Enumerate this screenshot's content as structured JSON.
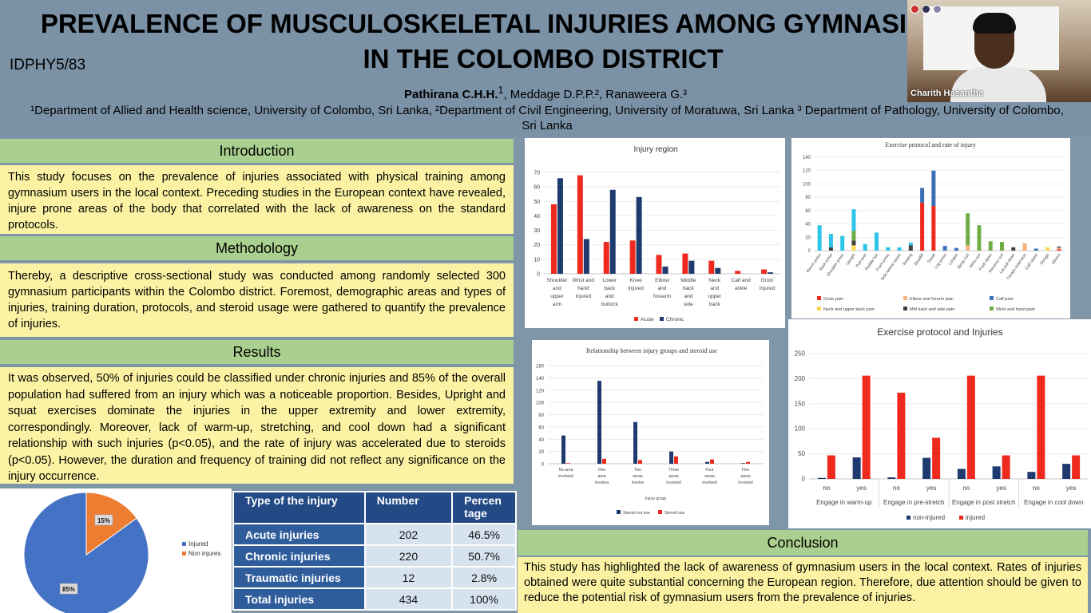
{
  "header": {
    "title": "PREVALENCE OF MUSCULOSKELETAL INJURIES AMONG GYMNASIUM USERS\nIN THE COLOMBO DISTRICT",
    "code": "IDPHY5/83",
    "lead_author": "Pathirana C.H.H.",
    "lead_author_sup": "1",
    "other_authors": ", Meddage D.P.P.², Ranaweera G.³",
    "affiliations": "¹Department of Allied and Health science, University of Colombo, Sri Lanka, ²Department of Civil Engineering, University of Moratuwa, Sri Lanka ³ Department of Pathology, University of Colombo, Sri Lanka"
  },
  "video": {
    "participant_name": "Charith Hasantha"
  },
  "introduction": {
    "heading": "Introduction",
    "text": "This study focuses on the prevalence of injuries associated with physical training among gymnasium users in the local context. Preceding studies in the European context have revealed, injure prone areas of the body that correlated with the lack of awareness on the standard protocols."
  },
  "methodology": {
    "heading": "Methodology",
    "text": "Thereby, a descriptive cross-sectional study was conducted among randomly selected 300 gymnasium participants within the Colombo district. Foremost, demographic areas and types of injuries, training duration, protocols, and steroid usage were gathered to quantify the prevalence of injuries."
  },
  "results": {
    "heading": "Results",
    "text": "It was observed, 50% of injuries could be classified under chronic injuries and 85% of the overall population had suffered from an injury which was a noticeable proportion.  Besides, Upright and squat exercises dominate the injuries in the upper extremity and lower extremity, correspondingly. Moreover, lack of warm-up, stretching, and cool down had a significant relationship with such injuries (p<0.05), and the rate of injury was accelerated due to steroids (p<0.05). However, the duration and frequency of training did not reflect any significance on the injury occurrence."
  },
  "conclusion": {
    "heading": "Conclusion",
    "text": "This study has highlighted the lack of awareness of gymnasium users in the local context. Rates of injuries obtained were quite substantial concerning the European region. Therefore, due attention should be given to reduce the potential risk of gymnasium users from the prevalence of injuries."
  },
  "injury_table": {
    "headers": [
      "Type of the injury",
      "Number",
      "Percentage"
    ],
    "rows": [
      [
        "Acute injuries",
        "202",
        "46.5%"
      ],
      [
        "Chronic injuries",
        "220",
        "50.7%"
      ],
      [
        "Traumatic injuries",
        "12",
        "2.8%"
      ],
      [
        "Total injuries",
        "434",
        "100%"
      ]
    ]
  },
  "colors": {
    "red": "#ee2a1e",
    "navy": "#1f3a6e",
    "pie_blue": "#4472c4",
    "pie_orange": "#ed7d31",
    "cyan": "#2ec4e8",
    "blue2": "#3b6fb6",
    "green": "#70ad47",
    "yellow": "#ffd54a",
    "orange": "#f4b183",
    "gray": "#7f7f7f"
  },
  "chart_data": [
    {
      "id": "pie",
      "type": "pie",
      "title": "",
      "categories": [
        "Injured",
        "Non injures"
      ],
      "values": [
        85,
        15
      ],
      "labels": [
        "85%",
        "15%"
      ],
      "colors": [
        "#4472c4",
        "#ed7d31"
      ],
      "legend": "right"
    },
    {
      "id": "region",
      "type": "bar",
      "title": "Injury region",
      "categories": [
        "Shoulder and upper arm",
        "Wrist and hand injured",
        "Lower back and buttock",
        "Knee injured",
        "Elbow and forearm",
        "Middle back and side",
        "Neck and upper back",
        "Calf and ankle",
        "Groin injured"
      ],
      "tick_labels": [
        [
          "Shoulder",
          "and",
          "upper",
          "arm"
        ],
        [
          "Wrist and",
          "hand",
          "injured"
        ],
        [
          "Lower",
          "back",
          "and",
          "buttock"
        ],
        [
          "Knee",
          "injured"
        ],
        [
          "Elbow",
          "and",
          "forearm"
        ],
        [
          "Middle",
          "back",
          "and",
          "side"
        ],
        [
          "Neck",
          "and",
          "upper",
          "back"
        ],
        [
          "Calf and",
          "ankle"
        ],
        [
          "Groin",
          "injured"
        ]
      ],
      "series": [
        {
          "name": "Acute",
          "values": [
            48,
            68,
            22,
            23,
            13,
            14,
            9,
            2,
            3
          ],
          "color": "#ee2a1e"
        },
        {
          "name": "Chronic",
          "values": [
            66,
            24,
            58,
            53,
            5,
            9,
            4,
            0,
            1
          ],
          "color": "#1f3a6e"
        }
      ],
      "ylim": [
        0,
        70
      ],
      "yticks": [
        "0",
        "10",
        "20",
        "30",
        "40",
        "50",
        "60",
        "70"
      ],
      "legend": "bottom"
    },
    {
      "id": "protocol",
      "type": "bar",
      "title": "Exercise protocol and rate of injury",
      "categories": [
        "Bench press",
        "Back press",
        "Shoulder press",
        "Upright",
        "Pull over",
        "Paddle bar",
        "Front press",
        "Side lateral raises",
        "Rowing",
        "Deadlift",
        "Squat",
        "Leg press",
        "Lunges",
        "Bicep curl",
        "Wrist curl",
        "Push down",
        "Reverse curl",
        "Lat pull down",
        "Triceps extension",
        "Calf raises",
        "Shrugs",
        "Others"
      ],
      "yticks": [
        "0",
        "20",
        "40",
        "60",
        "80",
        "100",
        "120",
        "140"
      ],
      "ylim": [
        0,
        140
      ],
      "stacked": true,
      "series": [
        {
          "name": "Groin pain",
          "color": "#ee2a1e",
          "values": [
            0,
            0,
            0,
            0,
            0,
            0,
            0,
            0,
            0,
            72,
            67,
            0,
            0,
            0,
            0,
            0,
            0,
            0,
            0,
            0,
            0,
            2
          ]
        },
        {
          "name": "Elbow and forarm pain",
          "color": "#f4b183",
          "values": [
            0,
            0,
            0,
            0,
            0,
            0,
            0,
            0,
            0,
            0,
            0,
            0,
            0,
            8,
            0,
            0,
            0,
            0,
            11,
            0,
            0,
            2
          ]
        },
        {
          "name": "Calf pain",
          "color": "#3b6fb6",
          "values": [
            0,
            0,
            0,
            0,
            0,
            0,
            0,
            0,
            0,
            22,
            53,
            7,
            4,
            0,
            0,
            0,
            0,
            0,
            0,
            3,
            0,
            2
          ]
        },
        {
          "name": "Neck and upper back pain",
          "color": "#ffd54a",
          "values": [
            0,
            0,
            0,
            8,
            0,
            0,
            0,
            0,
            0,
            0,
            0,
            0,
            0,
            0,
            0,
            0,
            0,
            0,
            0,
            0,
            5,
            1
          ]
        },
        {
          "name": "Mid back and side pain",
          "color": "#404040",
          "values": [
            0,
            5,
            0,
            7,
            0,
            0,
            0,
            0,
            8,
            0,
            0,
            0,
            0,
            0,
            0,
            0,
            0,
            5,
            0,
            0,
            0,
            0
          ]
        },
        {
          "name": "Wrist and hand pain",
          "color": "#70ad47",
          "values": [
            0,
            0,
            0,
            15,
            0,
            0,
            0,
            0,
            0,
            0,
            0,
            0,
            0,
            48,
            38,
            14,
            13,
            0,
            0,
            0,
            0,
            0
          ]
        },
        {
          "name": "",
          "color": "#2ec4e8",
          "values": [
            38,
            20,
            22,
            32,
            10,
            27,
            5,
            5,
            4,
            0,
            0,
            0,
            0,
            0,
            0,
            0,
            0,
            0,
            0,
            0,
            0,
            0
          ]
        }
      ],
      "legend": "bottom"
    },
    {
      "id": "steroid",
      "type": "bar",
      "title": "Relationship between injury groups and steroid use",
      "xlabel": "Injury group",
      "categories": [
        "No area involved",
        "One area involves",
        "Two areas involve",
        "Three areas involved",
        "Four areas involved",
        "Five areas involved"
      ],
      "tick_labels": [
        [
          "No area",
          "involved"
        ],
        [
          "One",
          "area",
          "involves"
        ],
        [
          "Two",
          "areas",
          "involve"
        ],
        [
          "Three",
          "areas",
          "involved"
        ],
        [
          "Four",
          "areas",
          "involved"
        ],
        [
          "Five",
          "areas",
          "involved"
        ]
      ],
      "series": [
        {
          "name": "Steroid  not use",
          "values": [
            46,
            135,
            68,
            20,
            3,
            1
          ],
          "color": "#1f3a6e"
        },
        {
          "name": "Steroid  use",
          "values": [
            1,
            8,
            6,
            12,
            7,
            3
          ],
          "color": "#ee2a1e"
        }
      ],
      "ylim": [
        0,
        160
      ],
      "yticks": [
        "0",
        "20",
        "40",
        "60",
        "80",
        "100",
        "120",
        "140",
        "160"
      ],
      "legend": "bottom"
    },
    {
      "id": "warmup",
      "type": "bar",
      "title": "Exercise protocol and Injuries",
      "categories": [
        "no",
        "yes",
        "no",
        "yes",
        "no",
        "yes",
        "no",
        "yes"
      ],
      "groups": [
        "Engage in warm-up",
        "Engage in pre-stretch",
        "Engage in post stretch",
        "Engage in cool down"
      ],
      "series": [
        {
          "name": "non-injured",
          "values": [
            2,
            43,
            3,
            42,
            20,
            25,
            14,
            30
          ],
          "color": "#1f3a6e"
        },
        {
          "name": "injured",
          "values": [
            47,
            206,
            172,
            82,
            206,
            47,
            206,
            47
          ],
          "color": "#ee2a1e"
        }
      ],
      "ylim": [
        0,
        250
      ],
      "yticks": [
        "0",
        "50",
        "100",
        "150",
        "200",
        "250"
      ],
      "legend": "bottom"
    }
  ]
}
